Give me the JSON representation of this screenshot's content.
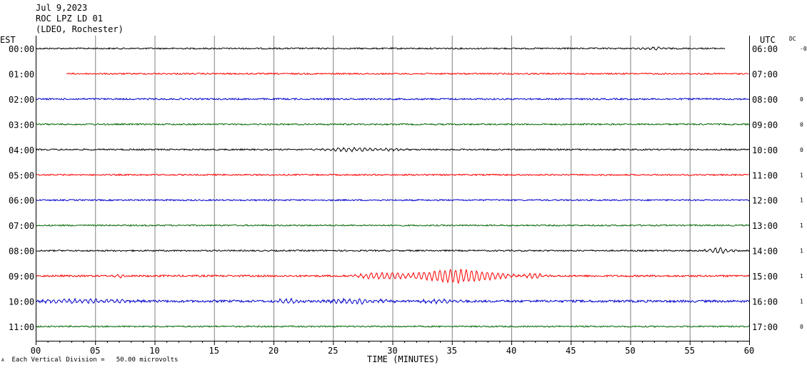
{
  "header": {
    "date": "Jul 9,2023",
    "station": "ROC LPZ LD 01",
    "network": "(LDEO, Rochester)"
  },
  "left_zone_label": "EST",
  "right_zone_label": "UTC",
  "dc_label": "DC",
  "footer": {
    "scale_note": "Each Vertical Division =   50.00 microvolts",
    "corner_mark": "A"
  },
  "colors": {
    "black": "#000000",
    "red": "#ff0000",
    "blue": "#0000cc",
    "green": "#006600",
    "grid": "#808080"
  },
  "chart_data": {
    "type": "line",
    "title": "",
    "xlabel": "TIME (MINUTES)",
    "ylabel": "",
    "xlim": [
      0,
      60
    ],
    "x_ticks": [
      "00",
      "05",
      "10",
      "15",
      "20",
      "25",
      "30",
      "35",
      "40",
      "45",
      "50",
      "55",
      "60"
    ],
    "grid": true,
    "series": [
      {
        "est": "00:00",
        "utc": "06:00",
        "dc": "-0",
        "color": "black",
        "start_min": 0,
        "end_min": 58,
        "noise": 1.0,
        "bursts": [
          [
            52,
            1.2,
            1.5
          ]
        ]
      },
      {
        "est": "01:00",
        "utc": "07:00",
        "dc": "",
        "color": "red",
        "start_min": 2.6,
        "end_min": 60,
        "noise": 1.0,
        "bursts": []
      },
      {
        "est": "02:00",
        "utc": "08:00",
        "dc": "0",
        "color": "blue",
        "start_min": 0,
        "end_min": 60,
        "noise": 1.1,
        "bursts": []
      },
      {
        "est": "03:00",
        "utc": "09:00",
        "dc": "0",
        "color": "green",
        "start_min": 0,
        "end_min": 60,
        "noise": 1.0,
        "bursts": []
      },
      {
        "est": "04:00",
        "utc": "10:00",
        "dc": "0",
        "color": "black",
        "start_min": 0,
        "end_min": 60,
        "noise": 1.0,
        "bursts": [
          [
            26.5,
            2.0,
            2.5
          ],
          [
            30,
            1.0,
            1.5
          ]
        ]
      },
      {
        "est": "05:00",
        "utc": "11:00",
        "dc": "1",
        "color": "red",
        "start_min": 0,
        "end_min": 60,
        "noise": 1.0,
        "bursts": []
      },
      {
        "est": "06:00",
        "utc": "12:00",
        "dc": "1",
        "color": "blue",
        "start_min": 0,
        "end_min": 60,
        "noise": 1.0,
        "bursts": []
      },
      {
        "est": "07:00",
        "utc": "13:00",
        "dc": "1",
        "color": "green",
        "start_min": 0,
        "end_min": 60,
        "noise": 1.0,
        "bursts": []
      },
      {
        "est": "08:00",
        "utc": "14:00",
        "dc": "1",
        "color": "black",
        "start_min": 0,
        "end_min": 60,
        "noise": 1.0,
        "bursts": [
          [
            57.5,
            1.0,
            4.0
          ]
        ]
      },
      {
        "est": "09:00",
        "utc": "15:00",
        "dc": "1",
        "color": "red",
        "start_min": 0,
        "end_min": 60,
        "noise": 1.3,
        "bursts": [
          [
            29,
            2.0,
            4.0
          ],
          [
            35.5,
            3.5,
            9.0
          ],
          [
            42,
            1.0,
            2.5
          ],
          [
            7.2,
            0.6,
            2.0
          ]
        ]
      },
      {
        "est": "10:00",
        "utc": "16:00",
        "dc": "1",
        "color": "blue",
        "start_min": 0,
        "end_min": 60,
        "noise": 1.6,
        "bursts": [
          [
            4,
            4.0,
            2.5
          ],
          [
            21,
            1.0,
            3.0
          ],
          [
            27,
            2.5,
            3.0
          ],
          [
            34,
            1.5,
            2.5
          ]
        ]
      },
      {
        "est": "11:00",
        "utc": "17:00",
        "dc": "0",
        "color": "green",
        "start_min": 0,
        "end_min": 60,
        "noise": 1.0,
        "bursts": []
      }
    ]
  }
}
